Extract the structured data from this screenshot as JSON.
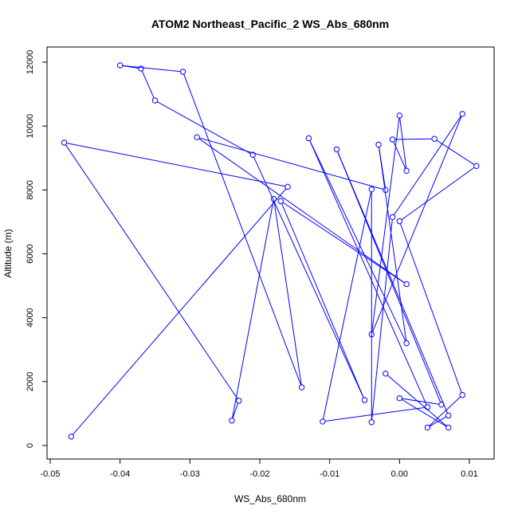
{
  "chart_data": {
    "type": "line",
    "title": "ATOM2 Northeast_Pacific_2 WS_Abs_680nm",
    "xlabel": "WS_Abs_680nm",
    "ylabel": "Altitude (m)",
    "xlim": [
      -0.05,
      0.011
    ],
    "ylim": [
      0,
      12000
    ],
    "xticks": [
      -0.05,
      -0.04,
      -0.03,
      -0.02,
      -0.01,
      0.0,
      0.01
    ],
    "xtick_labels": [
      "-0.05",
      "-0.04",
      "-0.03",
      "-0.02",
      "-0.01",
      "0.00",
      "0.01"
    ],
    "yticks": [
      0,
      2000,
      4000,
      6000,
      8000,
      10000,
      12000
    ],
    "ytick_labels": [
      "0",
      "2000",
      "4000",
      "6000",
      "8000",
      "10000",
      "12000"
    ],
    "grid": false,
    "series": [
      {
        "color": "#0000ff",
        "marker": "open-circle",
        "points": [
          {
            "x": -0.047,
            "y": 280
          },
          {
            "x": -0.016,
            "y": 8100
          },
          {
            "x": -0.048,
            "y": 9480
          },
          {
            "x": -0.023,
            "y": 1400
          },
          {
            "x": -0.024,
            "y": 780
          },
          {
            "x": -0.018,
            "y": 7720
          },
          {
            "x": -0.014,
            "y": 1820
          },
          {
            "x": -0.031,
            "y": 11700
          },
          {
            "x": -0.04,
            "y": 11900
          },
          {
            "x": -0.037,
            "y": 11800
          },
          {
            "x": -0.035,
            "y": 10800
          },
          {
            "x": -0.021,
            "y": 9100
          },
          {
            "x": -0.005,
            "y": 1420
          },
          {
            "x": -0.017,
            "y": 7650
          },
          {
            "x": 0.001,
            "y": 5050
          },
          {
            "x": -0.029,
            "y": 9650
          },
          {
            "x": -0.002,
            "y": 8000
          },
          {
            "x": -0.003,
            "y": 9420
          },
          {
            "x": 0.001,
            "y": 3200
          },
          {
            "x": -0.013,
            "y": 9620
          },
          {
            "x": 0.004,
            "y": 1200
          },
          {
            "x": -0.011,
            "y": 750
          },
          {
            "x": -0.004,
            "y": 8020
          },
          {
            "x": -0.004,
            "y": 730
          },
          {
            "x": -0.001,
            "y": 7150
          },
          {
            "x": 0.009,
            "y": 10380
          },
          {
            "x": -0.004,
            "y": 3480
          },
          {
            "x": 0.0,
            "y": 10330
          },
          {
            "x": 0.001,
            "y": 8600
          },
          {
            "x": -0.001,
            "y": 9580
          },
          {
            "x": 0.005,
            "y": 9600
          },
          {
            "x": 0.011,
            "y": 8750
          },
          {
            "x": 0.0,
            "y": 7020
          },
          {
            "x": 0.009,
            "y": 1580
          },
          {
            "x": 0.004,
            "y": 560
          },
          {
            "x": 0.007,
            "y": 940
          },
          {
            "x": -0.009,
            "y": 9270
          },
          {
            "x": 0.006,
            "y": 1280
          },
          {
            "x": 0.0,
            "y": 1480
          },
          {
            "x": 0.007,
            "y": 560
          },
          {
            "x": -0.002,
            "y": 2250
          }
        ]
      }
    ]
  }
}
